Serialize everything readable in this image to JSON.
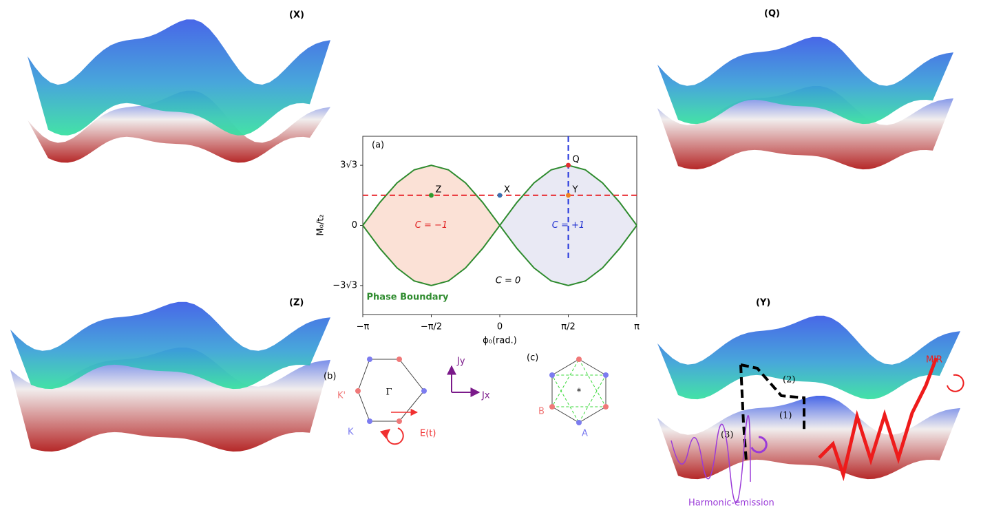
{
  "chart_data": {
    "type": "line",
    "title": "(a)",
    "x_label": "ϕ₀(rad.)",
    "y_label": "M₀/t₂",
    "xlim": [
      -3.1416,
      3.1416
    ],
    "ylim": [
      -7.7,
      7.7
    ],
    "xticks": [
      {
        "value": -3.1416,
        "label": "−π"
      },
      {
        "value": -1.5708,
        "label": "−π/2"
      },
      0,
      {
        "value": 1.5708,
        "label": "π/2"
      },
      {
        "value": 3.1416,
        "label": "π"
      }
    ],
    "yticks": [
      {
        "value": -5.196,
        "label": "−3√3"
      },
      0,
      {
        "value": 5.196,
        "label": "3√3"
      }
    ],
    "x": [
      -3.142,
      -2.749,
      -2.356,
      -1.963,
      -1.571,
      -1.178,
      -0.785,
      -0.393,
      0,
      0.393,
      0.785,
      1.178,
      1.571,
      1.963,
      2.356,
      2.749,
      3.142
    ],
    "series": [
      {
        "name": "Phase Boundary",
        "color": "#2e8b2e",
        "values": [
          0,
          1.989,
          3.674,
          4.801,
          5.196,
          4.801,
          3.674,
          1.989,
          0,
          1.989,
          3.674,
          4.801,
          5.196,
          4.801,
          3.674,
          1.989,
          0
        ],
        "values_lower": [
          0,
          -1.989,
          -3.674,
          -4.801,
          -5.196,
          -4.801,
          -3.674,
          -1.989,
          0,
          -1.989,
          -3.674,
          -4.801,
          -5.196,
          -4.801,
          -3.674,
          -1.989,
          0
        ]
      }
    ],
    "regions": [
      {
        "label": "C = −1",
        "color": "#fbe1d6",
        "text_color": "#e02020",
        "x_from": -3.142,
        "x_to": 0
      },
      {
        "label": "C = +1",
        "color": "#e9e9f4",
        "text_color": "#2030d0",
        "x_from": 0,
        "x_to": 3.142
      }
    ],
    "outside_label": "C = 0",
    "hline": {
      "value": 2.598,
      "color": "#e8242a"
    },
    "vline": {
      "value": 1.571,
      "color": "#2233dd"
    },
    "points": [
      {
        "label": "Z",
        "x": -1.571,
        "y": 2.598,
        "color": "#2e9b2e"
      },
      {
        "label": "X",
        "x": 0,
        "y": 2.598,
        "color": "#3a70b0"
      },
      {
        "label": "Y",
        "x": 1.571,
        "y": 2.598,
        "color": "#f08020"
      },
      {
        "label": "Q",
        "x": 1.571,
        "y": 5.196,
        "color": "#e03030"
      }
    ]
  },
  "panels": {
    "x": "(X)",
    "q": "(Q)",
    "z": "(Z)",
    "y": "(Y)"
  },
  "lattice_b": {
    "label": "(b)",
    "k_prime": "K'",
    "k": "K",
    "gamma": "Γ",
    "jy": "Jy",
    "jx": "Jx",
    "field": "E(t)"
  },
  "lattice_c": {
    "label": "(c)",
    "b": "B",
    "a": "A",
    "center": "*"
  },
  "process": {
    "step1": "(1)",
    "step2": "(2)",
    "step3": "(3)",
    "mir": "MIR",
    "emission": "Harmonic-emission"
  }
}
